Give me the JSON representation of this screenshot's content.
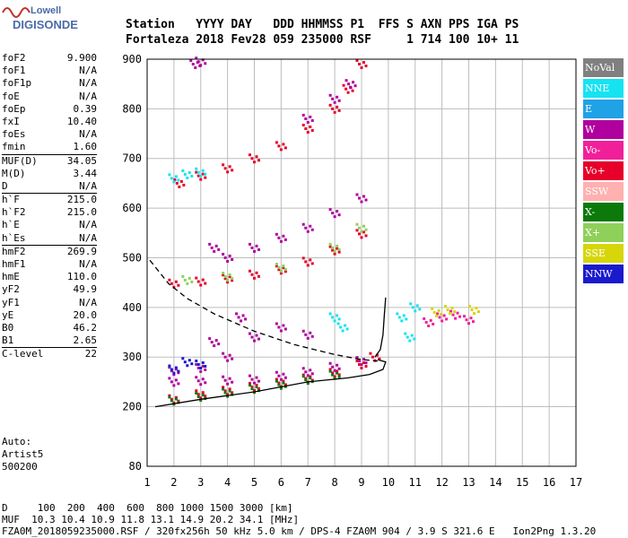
{
  "logo": {
    "line1": "Lowell",
    "line2": "DIGISONDE"
  },
  "header": {
    "labels_line": "Station   YYYY DAY   DDD HHMMSS P1  FFS S AXN PPS IGA PS",
    "values_line": "Fortaleza 2018 Fev28 059 235000 RSF     1 714 100 10+ 11"
  },
  "params": [
    {
      "k": "foF2",
      "v": "9.900"
    },
    {
      "k": "foF1",
      "v": "N/A"
    },
    {
      "k": "foF1p",
      "v": "N/A"
    },
    {
      "k": "foE",
      "v": "N/A"
    },
    {
      "k": "foEp",
      "v": "0.39"
    },
    {
      "k": "fxI",
      "v": "10.40"
    },
    {
      "k": "foEs",
      "v": "N/A"
    },
    {
      "k": "fmin",
      "v": "1.60"
    },
    {
      "k": "MUF(D)",
      "v": "34.05"
    },
    {
      "k": "M(D)",
      "v": "3.44"
    },
    {
      "k": "D",
      "v": "N/A"
    },
    {
      "k": "h`F",
      "v": "215.0"
    },
    {
      "k": "h`F2",
      "v": "215.0"
    },
    {
      "k": "h`E",
      "v": "N/A"
    },
    {
      "k": "h`Es",
      "v": "N/A"
    },
    {
      "k": "hmF2",
      "v": "269.9"
    },
    {
      "k": "hmF1",
      "v": "N/A"
    },
    {
      "k": "hmE",
      "v": "110.0"
    },
    {
      "k": "yF2",
      "v": "49.9"
    },
    {
      "k": "yF1",
      "v": "N/A"
    },
    {
      "k": "yE",
      "v": "20.0"
    },
    {
      "k": "B0",
      "v": "46.2"
    },
    {
      "k": "B1",
      "v": "2.65"
    },
    {
      "k": "C-level",
      "v": "22"
    }
  ],
  "auto": {
    "l1": "Auto:",
    "l2": "Artist5",
    "l3": "500200"
  },
  "legend": [
    {
      "label": "NoVal",
      "color": "#808080"
    },
    {
      "label": "NNE",
      "color": "#16e3f2"
    },
    {
      "label": "E",
      "color": "#1fa2e6"
    },
    {
      "label": "W",
      "color": "#b0009e"
    },
    {
      "label": "Vo-",
      "color": "#f0209a"
    },
    {
      "label": "Vo+",
      "color": "#e6002a"
    },
    {
      "label": "SSW",
      "color": "#ffb0b0"
    },
    {
      "label": "X-",
      "color": "#0b7a0b"
    },
    {
      "label": "X+",
      "color": "#8fd05a"
    },
    {
      "label": "SSE",
      "color": "#d6d60a"
    },
    {
      "label": "NNW",
      "color": "#1a1acd"
    }
  ],
  "footer": {
    "d_line": "D     100  200  400  600  800 1000 1500 3000 [km]",
    "muf_line": "MUF  10.3 10.4 10.9 11.8 13.1 14.9 20.2 34.1 [MHz]",
    "file_line": "FZA0M_2018059235000.RSF / 320fx256h 50 kHz 5.0 km / DPS-4 FZA0M 904 / 3.9 S 321.6 E   Ion2Png 1.3.20"
  },
  "chart_data": {
    "type": "scatter",
    "xlim": [
      1,
      17
    ],
    "ylim": [
      80,
      900
    ],
    "x_ticks": [
      1,
      2,
      3,
      4,
      5,
      6,
      7,
      8,
      9,
      10,
      11,
      12,
      13,
      14,
      15,
      16,
      17
    ],
    "y_ticks": [
      80,
      200,
      300,
      400,
      500,
      600,
      700,
      800,
      900
    ],
    "grid": true,
    "legend_position": "right",
    "curves": [
      {
        "name": "profile",
        "style": "solid",
        "points": [
          [
            1.3,
            200
          ],
          [
            3,
            215
          ],
          [
            5,
            230
          ],
          [
            7,
            250
          ],
          [
            8.5,
            258
          ],
          [
            9.3,
            265
          ],
          [
            9.8,
            275
          ],
          [
            9.9,
            290
          ],
          [
            9.6,
            295
          ]
        ]
      },
      {
        "name": "dashed",
        "style": "dashed",
        "points": [
          [
            1.1,
            495
          ],
          [
            1.8,
            448
          ],
          [
            2.5,
            418
          ],
          [
            3.5,
            387
          ],
          [
            5,
            352
          ],
          [
            6.5,
            325
          ],
          [
            8,
            305
          ],
          [
            9,
            295
          ],
          [
            9.6,
            292
          ]
        ]
      },
      {
        "name": "trace",
        "style": "solid",
        "points": [
          [
            9.5,
            300
          ],
          [
            9.7,
            315
          ],
          [
            9.8,
            345
          ],
          [
            9.85,
            385
          ],
          [
            9.9,
            420
          ]
        ]
      }
    ],
    "clusters": [
      {
        "color": "#e6002a",
        "points": [
          [
            2,
            215
          ],
          [
            3,
            225
          ],
          [
            4,
            232
          ],
          [
            5,
            240
          ],
          [
            6,
            248
          ],
          [
            7,
            257
          ],
          [
            8,
            268
          ],
          [
            9,
            285
          ],
          [
            9.5,
            300
          ]
        ]
      },
      {
        "color": "#b0009e",
        "points": [
          [
            2,
            250
          ],
          [
            3,
            252
          ],
          [
            4,
            253
          ],
          [
            5,
            255
          ],
          [
            6,
            262
          ],
          [
            7,
            270
          ],
          [
            8,
            280
          ],
          [
            9,
            292
          ]
        ]
      },
      {
        "color": "#0b7a0b",
        "points": [
          [
            2,
            212
          ],
          [
            3,
            220
          ],
          [
            4,
            228
          ],
          [
            5,
            236
          ],
          [
            6,
            244
          ],
          [
            7,
            254
          ],
          [
            8,
            264
          ]
        ]
      },
      {
        "color": "#b0009e",
        "points": [
          [
            2,
            272
          ],
          [
            3,
            278
          ],
          [
            4,
            300
          ],
          [
            5,
            340
          ],
          [
            6,
            360
          ],
          [
            7,
            345
          ],
          [
            3.5,
            330
          ],
          [
            4.5,
            380
          ]
        ]
      },
      {
        "color": "#1a1acd",
        "points": [
          [
            2,
            275
          ],
          [
            3,
            285
          ],
          [
            2.5,
            290
          ]
        ]
      },
      {
        "color": "#e6002a",
        "points": [
          [
            2,
            448
          ],
          [
            3,
            452
          ],
          [
            4,
            458
          ],
          [
            5,
            466
          ],
          [
            6,
            476
          ],
          [
            7,
            492
          ],
          [
            8,
            515
          ],
          [
            9,
            548
          ]
        ]
      },
      {
        "color": "#8fd05a",
        "points": [
          [
            2.5,
            455
          ],
          [
            4,
            462
          ],
          [
            6,
            480
          ],
          [
            8,
            520
          ],
          [
            9,
            560
          ]
        ]
      },
      {
        "color": "#b0009e",
        "points": [
          [
            4,
            500
          ],
          [
            5,
            520
          ],
          [
            6,
            540
          ],
          [
            7,
            560
          ],
          [
            8,
            590
          ],
          [
            9,
            620
          ],
          [
            3.5,
            520
          ]
        ]
      },
      {
        "color": "#e6002a",
        "points": [
          [
            2.2,
            650
          ],
          [
            3,
            665
          ],
          [
            4,
            680
          ],
          [
            5,
            700
          ],
          [
            6,
            725
          ],
          [
            7,
            760
          ],
          [
            8,
            800
          ],
          [
            8.5,
            840
          ],
          [
            9,
            890
          ]
        ]
      },
      {
        "color": "#16e3f2",
        "points": [
          [
            2,
            660
          ],
          [
            2.5,
            668
          ],
          [
            3,
            672
          ],
          [
            8,
            380
          ],
          [
            8.3,
            360
          ],
          [
            10.5,
            380
          ],
          [
            10.8,
            340
          ],
          [
            11,
            400
          ]
        ]
      },
      {
        "color": "#b0009e",
        "points": [
          [
            7,
            780
          ],
          [
            8,
            820
          ],
          [
            8.6,
            850
          ],
          [
            2.8,
            890
          ],
          [
            3,
            895
          ]
        ]
      },
      {
        "color": "#f0209a",
        "points": [
          [
            11.5,
            370
          ],
          [
            12,
            380
          ],
          [
            12.5,
            385
          ],
          [
            13,
            375
          ]
        ]
      },
      {
        "color": "#d6d60a",
        "points": [
          [
            11.8,
            390
          ],
          [
            12.3,
            395
          ],
          [
            13.2,
            395
          ]
        ]
      }
    ]
  }
}
